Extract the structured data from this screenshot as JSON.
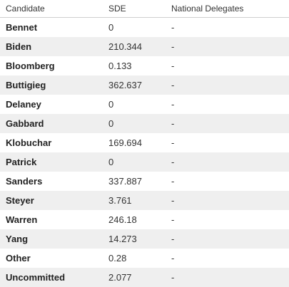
{
  "table": {
    "headers": [
      "Candidate",
      "SDE",
      "National Delegates"
    ],
    "rows": [
      {
        "candidate": "Bennet",
        "sde": "0",
        "delegates": "-"
      },
      {
        "candidate": "Biden",
        "sde": "210.344",
        "delegates": "-"
      },
      {
        "candidate": "Bloomberg",
        "sde": "0.133",
        "delegates": "-"
      },
      {
        "candidate": "Buttigieg",
        "sde": "362.637",
        "delegates": "-"
      },
      {
        "candidate": "Delaney",
        "sde": "0",
        "delegates": "-"
      },
      {
        "candidate": "Gabbard",
        "sde": "0",
        "delegates": "-"
      },
      {
        "candidate": "Klobuchar",
        "sde": "169.694",
        "delegates": "-"
      },
      {
        "candidate": "Patrick",
        "sde": "0",
        "delegates": "-"
      },
      {
        "candidate": "Sanders",
        "sde": "337.887",
        "delegates": "-"
      },
      {
        "candidate": "Steyer",
        "sde": "3.761",
        "delegates": "-"
      },
      {
        "candidate": "Warren",
        "sde": "246.18",
        "delegates": "-"
      },
      {
        "candidate": "Yang",
        "sde": "14.273",
        "delegates": "-"
      },
      {
        "candidate": "Other",
        "sde": "0.28",
        "delegates": "-"
      },
      {
        "candidate": "Uncommitted",
        "sde": "2.077",
        "delegates": "-"
      }
    ]
  },
  "colors": {
    "stripe": "#efefef",
    "text": "#333333"
  }
}
